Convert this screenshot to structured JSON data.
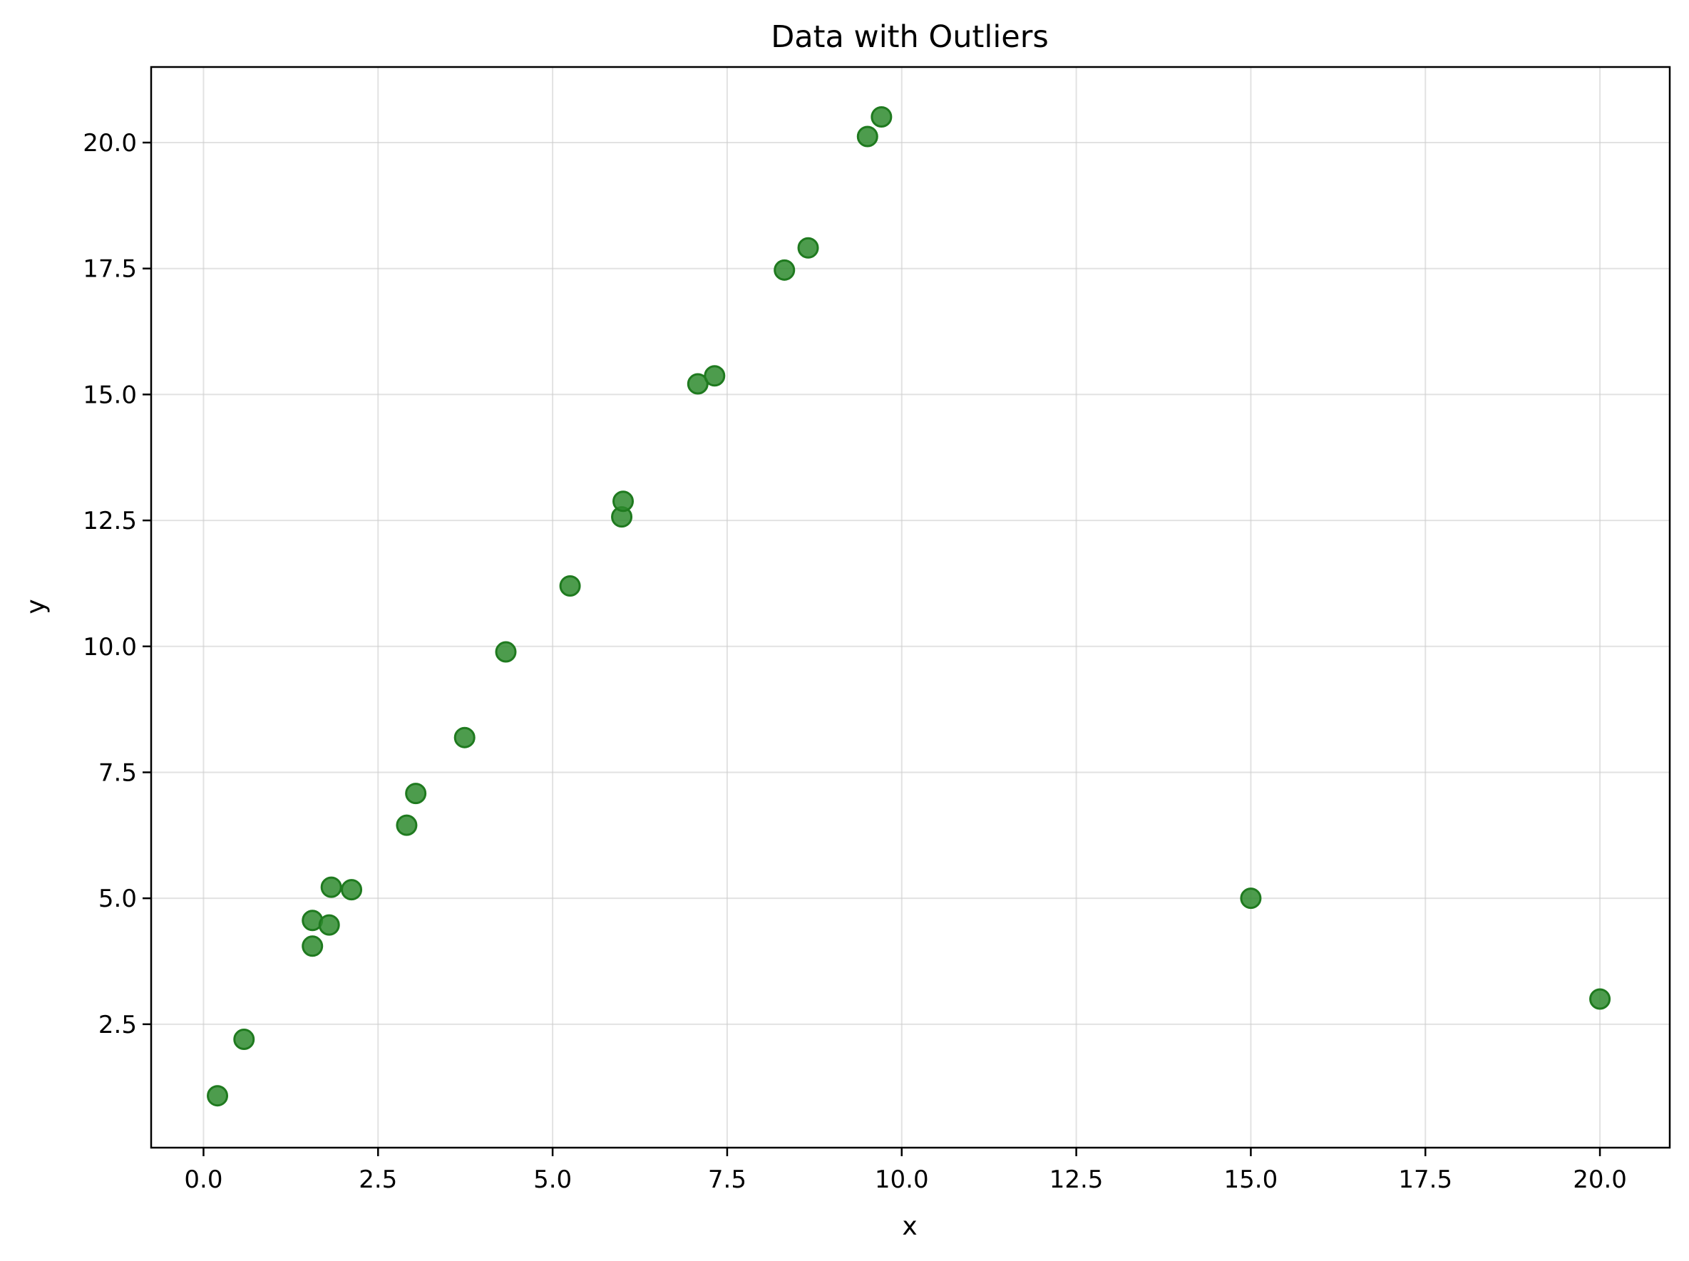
{
  "chart_data": {
    "type": "scatter",
    "title": "Data with Outliers",
    "xlabel": "x",
    "ylabel": "y",
    "xlim": [
      -0.75,
      21.0
    ],
    "ylim": [
      0.05,
      21.5
    ],
    "xticks": [
      0.0,
      2.5,
      5.0,
      7.5,
      10.0,
      12.5,
      15.0,
      17.5,
      20.0
    ],
    "xtick_labels": [
      "0.0",
      "2.5",
      "5.0",
      "7.5",
      "10.0",
      "12.5",
      "15.0",
      "17.5",
      "20.0"
    ],
    "yticks": [
      2.5,
      5.0,
      7.5,
      10.0,
      12.5,
      15.0,
      17.5,
      20.0
    ],
    "ytick_labels": [
      "2.5",
      "5.0",
      "7.5",
      "10.0",
      "12.5",
      "15.0",
      "17.5",
      "20.0"
    ],
    "grid": true,
    "marker_color": "#2e8b2e",
    "marker_edge_color": "#1f7a1f",
    "points": [
      {
        "x": 0.2,
        "y": 1.08
      },
      {
        "x": 0.58,
        "y": 2.2
      },
      {
        "x": 1.56,
        "y": 4.05
      },
      {
        "x": 1.56,
        "y": 4.56
      },
      {
        "x": 1.8,
        "y": 4.47
      },
      {
        "x": 1.83,
        "y": 5.22
      },
      {
        "x": 2.12,
        "y": 5.17
      },
      {
        "x": 2.91,
        "y": 6.45
      },
      {
        "x": 3.04,
        "y": 7.08
      },
      {
        "x": 3.74,
        "y": 8.19
      },
      {
        "x": 4.33,
        "y": 9.89
      },
      {
        "x": 5.25,
        "y": 11.2
      },
      {
        "x": 5.99,
        "y": 12.57
      },
      {
        "x": 6.01,
        "y": 12.88
      },
      {
        "x": 7.08,
        "y": 15.21
      },
      {
        "x": 7.32,
        "y": 15.37
      },
      {
        "x": 8.32,
        "y": 17.47
      },
      {
        "x": 8.66,
        "y": 17.91
      },
      {
        "x": 9.51,
        "y": 20.12
      },
      {
        "x": 9.71,
        "y": 20.51
      },
      {
        "x": 15.0,
        "y": 5.0
      },
      {
        "x": 20.0,
        "y": 3.0
      }
    ]
  }
}
